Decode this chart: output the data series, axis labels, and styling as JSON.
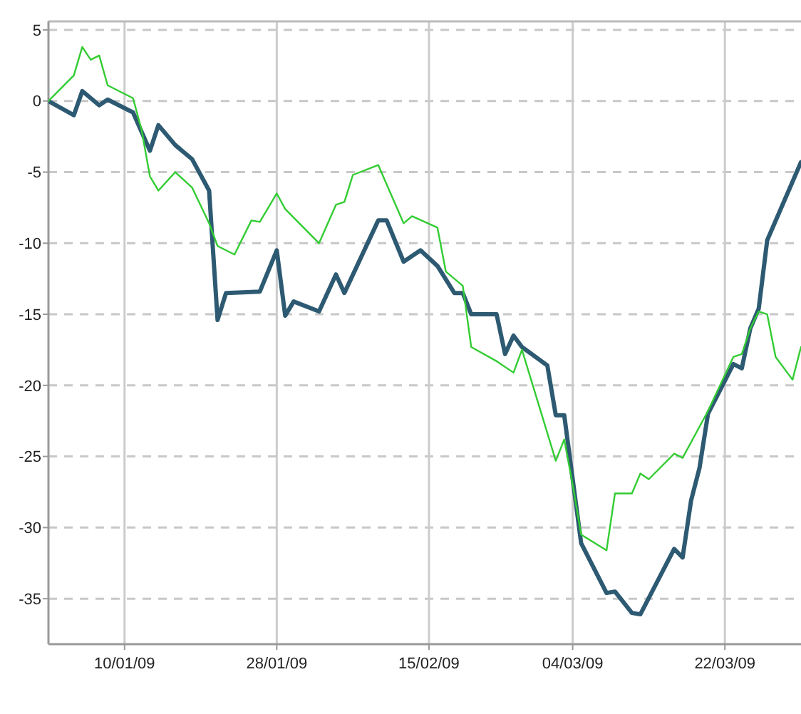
{
  "chart_data": {
    "type": "line",
    "xlim": [
      "2009-01-01",
      "2009-03-31"
    ],
    "ylim": [
      -38.2,
      5.6
    ],
    "xticks": [
      {
        "value": "2009-01-10",
        "label": "10/01/09"
      },
      {
        "value": "2009-01-28",
        "label": "28/01/09"
      },
      {
        "value": "2009-02-15",
        "label": "15/02/09"
      },
      {
        "value": "2009-03-04",
        "label": "04/03/09"
      },
      {
        "value": "2009-03-22",
        "label": "22/03/09"
      }
    ],
    "yticks": [
      5,
      0,
      -5,
      -10,
      -15,
      -20,
      -25,
      -30,
      -35
    ],
    "grid": true,
    "series": [
      {
        "color": "#2d5a72",
        "x": [
          "2009-01-01",
          "2009-01-04",
          "2009-01-05",
          "2009-01-07",
          "2009-01-08",
          "2009-01-11",
          "2009-01-13",
          "2009-01-14",
          "2009-01-16",
          "2009-01-18",
          "2009-01-20",
          "2009-01-21",
          "2009-01-22",
          "2009-01-26",
          "2009-01-28",
          "2009-01-29",
          "2009-01-30",
          "2009-02-02",
          "2009-02-04",
          "2009-02-05",
          "2009-02-09",
          "2009-02-10",
          "2009-02-12",
          "2009-02-14",
          "2009-02-16",
          "2009-02-18",
          "2009-02-19",
          "2009-02-20",
          "2009-02-23",
          "2009-02-24",
          "2009-02-25",
          "2009-02-26",
          "2009-03-01",
          "2009-03-02",
          "2009-03-03",
          "2009-03-04",
          "2009-03-05",
          "2009-03-08",
          "2009-03-09",
          "2009-03-11",
          "2009-03-12",
          "2009-03-16",
          "2009-03-17",
          "2009-03-18",
          "2009-03-19",
          "2009-03-20",
          "2009-03-23",
          "2009-03-24",
          "2009-03-25",
          "2009-03-26",
          "2009-03-27",
          "2009-03-31"
        ],
        "values": [
          0,
          -1.0,
          0.7,
          -0.3,
          0.1,
          -0.8,
          -3.5,
          -1.7,
          -3.1,
          -4.1,
          -6.3,
          -15.4,
          -13.5,
          -13.4,
          -10.5,
          -15.1,
          -14.1,
          -14.8,
          -12.2,
          -13.5,
          -8.4,
          -8.4,
          -11.3,
          -10.5,
          -11.6,
          -13.5,
          -13.5,
          -15.0,
          -15.0,
          -17.8,
          -16.5,
          -17.3,
          -18.6,
          -22.1,
          -22.1,
          -26.6,
          -31.1,
          -34.6,
          -34.5,
          -36.0,
          -36.1,
          -31.5,
          -32.1,
          -28.1,
          -25.8,
          -22.0,
          -18.5,
          -18.8,
          -16.0,
          -14.6,
          -9.8,
          -4.3
        ]
      },
      {
        "color": "#33cc33",
        "x": [
          "2009-01-01",
          "2009-01-04",
          "2009-01-05",
          "2009-01-06",
          "2009-01-07",
          "2009-01-08",
          "2009-01-11",
          "2009-01-12",
          "2009-01-13",
          "2009-01-14",
          "2009-01-16",
          "2009-01-18",
          "2009-01-20",
          "2009-01-21",
          "2009-01-23",
          "2009-01-25",
          "2009-01-26",
          "2009-01-28",
          "2009-01-29",
          "2009-02-02",
          "2009-02-04",
          "2009-02-05",
          "2009-02-06",
          "2009-02-09",
          "2009-02-12",
          "2009-02-13",
          "2009-02-16",
          "2009-02-17",
          "2009-02-19",
          "2009-02-20",
          "2009-02-23",
          "2009-02-25",
          "2009-02-26",
          "2009-03-02",
          "2009-03-03",
          "2009-03-04",
          "2009-03-05",
          "2009-03-08",
          "2009-03-09",
          "2009-03-11",
          "2009-03-12",
          "2009-03-13",
          "2009-03-16",
          "2009-03-17",
          "2009-03-20",
          "2009-03-23",
          "2009-03-24",
          "2009-03-25",
          "2009-03-26",
          "2009-03-27",
          "2009-03-28",
          "2009-03-30",
          "2009-03-31"
        ],
        "values": [
          0,
          1.8,
          3.8,
          2.9,
          3.2,
          1.1,
          0.2,
          -2.0,
          -5.3,
          -6.3,
          -5.0,
          -6.1,
          -8.6,
          -10.2,
          -10.8,
          -8.4,
          -8.5,
          -6.5,
          -7.6,
          -10.0,
          -7.3,
          -7.1,
          -5.2,
          -4.5,
          -8.6,
          -8.1,
          -8.9,
          -12.0,
          -13.0,
          -17.3,
          -18.3,
          -19.1,
          -17.5,
          -25.3,
          -23.8,
          -27.0,
          -30.5,
          -31.6,
          -27.6,
          -27.6,
          -26.2,
          -26.6,
          -24.8,
          -25.1,
          -21.8,
          -18.0,
          -17.8,
          -16.0,
          -14.8,
          -15.0,
          -18.0,
          -19.6,
          -17.3
        ]
      }
    ]
  }
}
